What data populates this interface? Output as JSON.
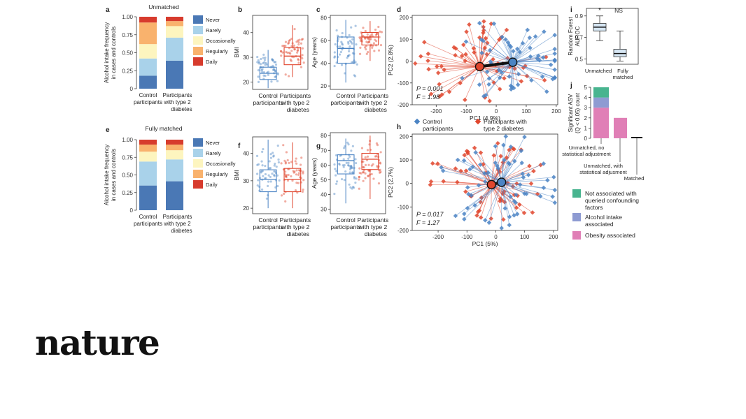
{
  "brand": "nature",
  "colors": {
    "never": "#4a78b5",
    "rarely": "#a9d2ea",
    "occasionally": "#fdf5bf",
    "regularly": "#f9b26d",
    "daily": "#d73b2d",
    "control": "#4b84c4",
    "t2d": "#e0462e",
    "green": "#48b48f",
    "purple": "#8e9bd2",
    "pink": "#e07fb6"
  },
  "chart_data": [
    {
      "panel": "a",
      "type": "bar",
      "stacked": true,
      "title": "Unmatched",
      "ylabel": "Alcohol intake frequency in cases and controls",
      "ylim": [
        0,
        1
      ],
      "yticks": [
        "0",
        "0.25",
        "0.50",
        "0.75",
        "1.00"
      ],
      "categories": [
        "Control participants",
        "Participants with type 2 diabetes"
      ],
      "legend": [
        "Never",
        "Rarely",
        "Occasionally",
        "Regularly",
        "Daily"
      ],
      "series": [
        {
          "name": "Never",
          "values": [
            0.18,
            0.39
          ]
        },
        {
          "name": "Rarely",
          "values": [
            0.24,
            0.32
          ]
        },
        {
          "name": "Occasionally",
          "values": [
            0.2,
            0.16
          ]
        },
        {
          "name": "Regularly",
          "values": [
            0.3,
            0.07
          ]
        },
        {
          "name": "Daily",
          "values": [
            0.08,
            0.06
          ]
        }
      ]
    },
    {
      "panel": "e",
      "type": "bar",
      "stacked": true,
      "title": "Fully matched",
      "ylabel": "Alcohol intake frequency in cases and controls",
      "ylim": [
        0,
        1
      ],
      "yticks": [
        "0",
        "0.25",
        "0.50",
        "0.75",
        "1.00"
      ],
      "categories": [
        "Control participants",
        "Participants with type 2 diabetes"
      ],
      "legend": [
        "Never",
        "Rarely",
        "Occasionally",
        "Regularly",
        "Daily"
      ],
      "series": [
        {
          "name": "Never",
          "values": [
            0.35,
            0.41
          ]
        },
        {
          "name": "Rarely",
          "values": [
            0.34,
            0.31
          ]
        },
        {
          "name": "Occasionally",
          "values": [
            0.14,
            0.13
          ]
        },
        {
          "name": "Regularly",
          "values": [
            0.1,
            0.08
          ]
        },
        {
          "name": "Daily",
          "values": [
            0.07,
            0.07
          ]
        }
      ]
    },
    {
      "panel": "b",
      "type": "box",
      "ylabel": "BMI",
      "ylim": [
        17,
        47
      ],
      "yticks": [
        "20",
        "30",
        "40"
      ],
      "categories": [
        "Control participants",
        "Participants with type 2 diabetes"
      ],
      "boxes": [
        {
          "q1": 21,
          "median": 23.5,
          "q3": 26,
          "whislo": 17.5,
          "whishi": 33
        },
        {
          "q1": 27,
          "median": 30.5,
          "q3": 34,
          "whislo": 22,
          "whishi": 43
        }
      ]
    },
    {
      "panel": "c",
      "type": "box",
      "ylabel": "Age (years)",
      "ylim": [
        17,
        82
      ],
      "yticks": [
        "20",
        "40",
        "60",
        "80"
      ],
      "categories": [
        "Control participants",
        "Participants with type 2 diabetes"
      ],
      "boxes": [
        {
          "q1": 40,
          "median": 53,
          "q3": 63,
          "whislo": 23,
          "whishi": 78
        },
        {
          "q1": 56,
          "median": 63,
          "q3": 67,
          "whislo": 42,
          "whishi": 77
        }
      ]
    },
    {
      "panel": "f",
      "type": "box",
      "ylabel": "BMI",
      "ylim": [
        18,
        46
      ],
      "yticks": [
        "20",
        "30",
        "40"
      ],
      "categories": [
        "Control participants",
        "Participants with type 2 diabetes"
      ],
      "boxes": [
        {
          "q1": 26,
          "median": 30.5,
          "q3": 34,
          "whislo": 20,
          "whishi": 45
        },
        {
          "q1": 26,
          "median": 30.5,
          "q3": 34.5,
          "whislo": 20,
          "whishi": 44
        }
      ]
    },
    {
      "panel": "g",
      "type": "box",
      "ylabel": "Age (years)",
      "ylim": [
        27,
        82
      ],
      "yticks": [
        "30",
        "40",
        "50",
        "60",
        "70",
        "80"
      ],
      "categories": [
        "Control participants",
        "Participants with type 2 diabetes"
      ],
      "boxes": [
        {
          "q1": 54,
          "median": 63,
          "q3": 67,
          "whislo": 34,
          "whishi": 78
        },
        {
          "q1": 57,
          "median": 64,
          "q3": 68,
          "whislo": 37,
          "whishi": 80
        }
      ]
    },
    {
      "panel": "d",
      "type": "scatter",
      "xlabel": "PC1 (4.9%)",
      "ylabel": "PC2 (2.8%)",
      "xlim": [
        -280,
        205
      ],
      "ylim": [
        -200,
        210
      ],
      "xticks": [
        "-200",
        "-100",
        "0",
        "100",
        "200"
      ],
      "yticks": [
        "-200",
        "-100",
        "0",
        "100",
        "200"
      ],
      "stats": [
        "P = 0.001",
        "F = 1.98"
      ],
      "centroids": {
        "control": [
          55,
          -5
        ],
        "t2d": [
          -55,
          -25
        ]
      }
    },
    {
      "panel": "h",
      "type": "scatter",
      "xlabel": "PC1 (5%)",
      "ylabel": "PC2 (2.7%)",
      "xlim": [
        -290,
        215
      ],
      "ylim": [
        -200,
        210
      ],
      "xticks": [
        "-200",
        "-100",
        "0",
        "100",
        "200"
      ],
      "yticks": [
        "-200",
        "-100",
        "0",
        "100",
        "200"
      ],
      "stats": [
        "P = 0.017",
        "F = 1.27"
      ],
      "centroids": {
        "control": [
          20,
          5
        ],
        "t2d": [
          -15,
          -5
        ]
      }
    },
    {
      "panel": "i",
      "type": "box",
      "ylabel": "Random Forest AUROC",
      "ylim": [
        0.45,
        0.97
      ],
      "yticks": [
        "0.5",
        "0.7",
        "0.9"
      ],
      "categories": [
        "Unmatched",
        "Fully matched"
      ],
      "annotations": [
        "*",
        "NS"
      ],
      "boxes": [
        {
          "q1": 0.76,
          "median": 0.795,
          "q3": 0.83,
          "whislo": 0.67,
          "whishi": 0.9
        },
        {
          "q1": 0.52,
          "median": 0.55,
          "q3": 0.59,
          "whislo": 0.48,
          "whishi": 0.76
        }
      ]
    },
    {
      "panel": "j",
      "type": "bar",
      "stacked": true,
      "ylabel": "Significant ASV (Q < 0.05) count",
      "ylim": [
        0,
        5
      ],
      "yticks": [
        "0",
        "1",
        "2",
        "3",
        "4",
        "5"
      ],
      "categories": [
        "Unmatched, no statistical adjustment",
        "Unmatched, with statistical adjusment",
        "Matched"
      ],
      "series": [
        {
          "name": "Obesity associated",
          "values": [
            3,
            2,
            0
          ]
        },
        {
          "name": "Alcohol intake associated",
          "values": [
            1,
            0,
            0
          ]
        },
        {
          "name": "Not associated with queried confounding factors",
          "values": [
            1,
            0,
            0
          ]
        }
      ]
    }
  ],
  "text": {
    "labels": {
      "a": "a",
      "b": "b",
      "c": "c",
      "d": "d",
      "e": "e",
      "f": "f",
      "g": "g",
      "h": "h",
      "i": "i",
      "j": "j"
    },
    "group_control_l1": "Control",
    "group_control_l2": "participants",
    "group_t2d_l1": "Participants",
    "group_t2d_l2": "with type 2",
    "group_t2d_l3": "diabetes",
    "d_legend_control_l1": "Control",
    "d_legend_control_l2": "participants",
    "d_legend_t2d_l1": "Participants with",
    "d_legend_t2d_l2": "type 2 diabetes",
    "i_x1": "Unmatched",
    "i_x2_l1": "Fully",
    "i_x2_l2": "matched",
    "i_y_l1": "Random Forest",
    "i_y_l2": "AUROC",
    "j_y_l1": "Significant ASV",
    "j_y_l2": "(Q < 0.05) count",
    "j_cat1_l1": "Unmatched, no",
    "j_cat1_l2": "statistical adjustment",
    "j_cat2_l1": "Unmatched, with",
    "j_cat2_l2": "statistical adjusment",
    "j_cat3": "Matched",
    "j_leg1_l1": "Not associated with",
    "j_leg1_l2": "queried confounding",
    "j_leg1_l3": "factors",
    "j_leg2_l1": "Alcohol intake",
    "j_leg2_l2": "associated",
    "j_leg3": "Obesity associated",
    "alc_y_l1": "Alcohol intake frequency",
    "alc_y_l2": "in cases and controls"
  }
}
